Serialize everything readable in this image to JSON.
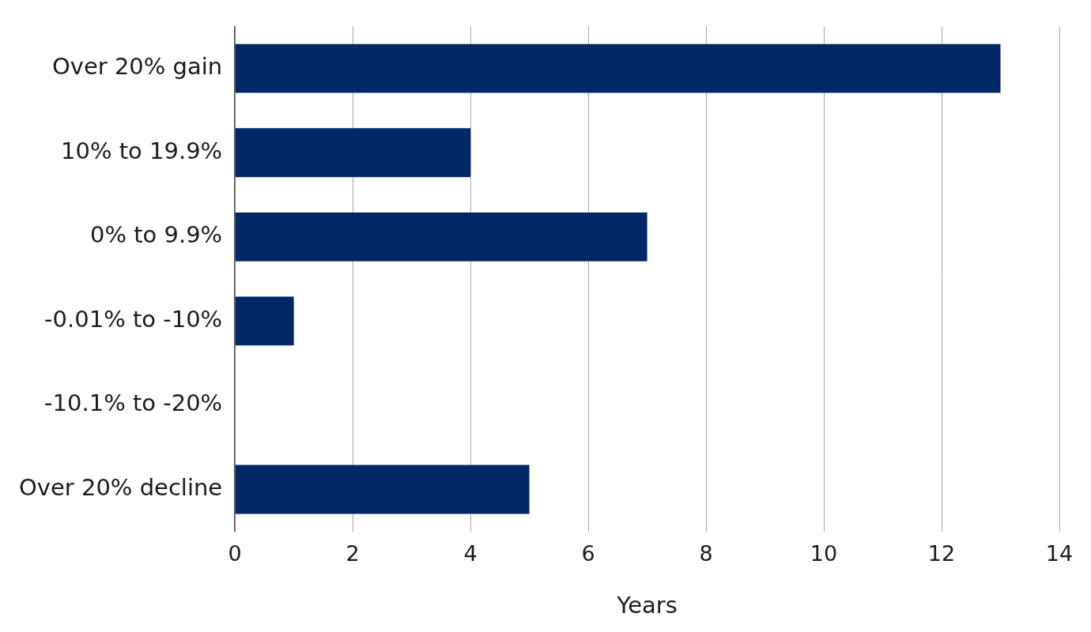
{
  "chart_data": {
    "type": "bar",
    "orientation": "horizontal",
    "categories": [
      "Over 20% gain",
      "10% to 19.9%",
      "0% to 9.9%",
      "-0.01% to -10%",
      "-10.1% to -20%",
      "Over 20% decline"
    ],
    "values": [
      13,
      4,
      7,
      1,
      0,
      5
    ],
    "color": "#022865",
    "xlabel": "Years",
    "xlim": [
      0,
      14
    ],
    "xticks": [
      0,
      2,
      4,
      6,
      8,
      10,
      12,
      14
    ],
    "grid": true
  }
}
